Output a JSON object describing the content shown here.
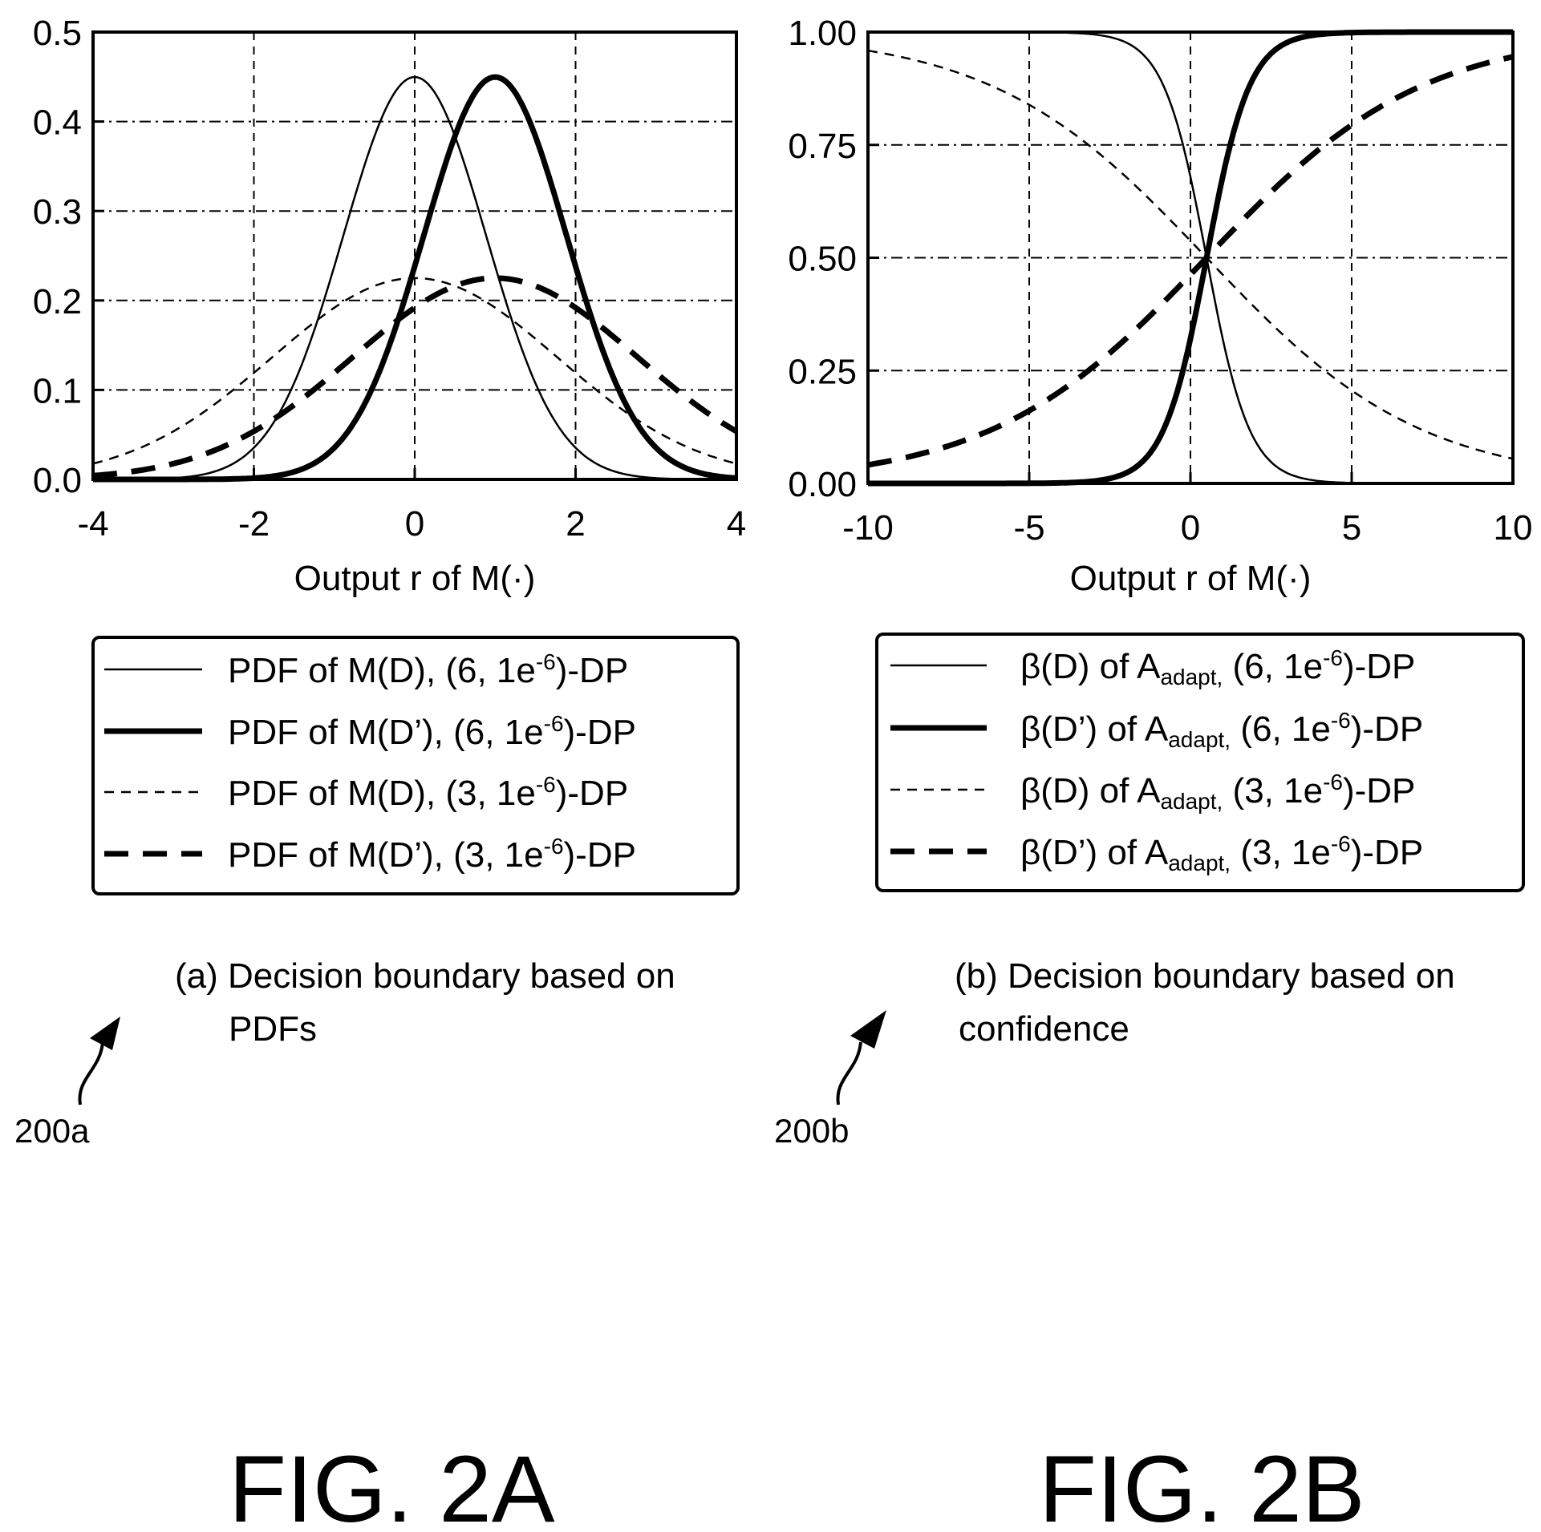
{
  "chart_data": [
    {
      "type": "line",
      "panel": "a",
      "xlabel": "Output r of M(·)",
      "ylabel": "",
      "xlim": [
        -4,
        4
      ],
      "ylim": [
        0,
        0.5
      ],
      "xticks": [
        "-4",
        "-2",
        "0",
        "2",
        "4"
      ],
      "yticks": [
        "0.0",
        "0.1",
        "0.2",
        "0.3",
        "0.4",
        "0.5"
      ],
      "grid": true,
      "legend_position": "below",
      "series": [
        {
          "name": "PDF of M(D), (6, 1e-6)-DP",
          "style": "thin-solid",
          "mean": 0,
          "std": 0.887,
          "x": [
            -4,
            -3,
            -2,
            -1.5,
            -1,
            -0.5,
            0,
            0.5,
            1,
            1.5,
            2,
            3,
            4
          ],
          "y": [
            0.0,
            0.002,
            0.036,
            0.108,
            0.239,
            0.368,
            0.45,
            0.368,
            0.239,
            0.108,
            0.036,
            0.002,
            0.0
          ]
        },
        {
          "name": "PDF of M(D’), (6, 1e-6)-DP",
          "style": "thick-solid",
          "mean": 1,
          "std": 0.887,
          "x": [
            -4,
            -3,
            -2,
            -1,
            -0.5,
            0,
            0.5,
            1,
            1.5,
            2,
            2.5,
            3,
            4
          ],
          "y": [
            0.0,
            0.0,
            0.002,
            0.036,
            0.108,
            0.239,
            0.368,
            0.45,
            0.368,
            0.239,
            0.108,
            0.036,
            0.002
          ]
        },
        {
          "name": "PDF of M(D), (3, 1e-6)-DP",
          "style": "thin-dashed",
          "mean": 0,
          "std": 1.773,
          "x": [
            -4,
            -3,
            -2,
            -1,
            0,
            1,
            2,
            3,
            4
          ],
          "y": [
            0.018,
            0.053,
            0.119,
            0.191,
            0.225,
            0.191,
            0.119,
            0.053,
            0.018
          ]
        },
        {
          "name": "PDF of M(D’), (3, 1e-6)-DP",
          "style": "thick-dashed",
          "mean": 1,
          "std": 1.773,
          "x": [
            -4,
            -3,
            -2,
            -1,
            0,
            1,
            2,
            3,
            4
          ],
          "y": [
            0.004,
            0.018,
            0.053,
            0.119,
            0.191,
            0.225,
            0.191,
            0.119,
            0.053
          ]
        }
      ],
      "legend": {
        "entries": [
          {
            "main": "PDF of M(D), (6, 1e",
            "sup": "-6",
            "tail": ")-DP"
          },
          {
            "main": "PDF of M(D’), (6, 1e",
            "sup": "-6",
            "tail": ")-DP"
          },
          {
            "main": "PDF of M(D), (3, 1e",
            "sup": "-6",
            "tail": ")-DP"
          },
          {
            "main": "PDF of M(D’), (3, 1e",
            "sup": "-6",
            "tail": ")-DP"
          }
        ]
      },
      "caption_line1": "(a) Decision boundary based on",
      "caption_line2": "PDFs",
      "ref": "200a",
      "fig_label": "FIG. 2A"
    },
    {
      "type": "line",
      "panel": "b",
      "xlabel": "Output r of M(·)",
      "ylabel": "",
      "xlim": [
        -10,
        10
      ],
      "ylim": [
        0,
        1
      ],
      "xticks": [
        "-10",
        "-5",
        "0",
        "5",
        "10"
      ],
      "yticks": [
        "0.00",
        "0.25",
        "0.50",
        "0.75",
        "1.00"
      ],
      "grid": true,
      "legend_position": "below",
      "series": [
        {
          "name": "β(D) of A_adapt, (6, 1e-6)-DP",
          "style": "thin-solid",
          "center": 0.5,
          "slope": -1.5,
          "x": [
            -10,
            -4,
            -2,
            -1,
            0,
            0.5,
            1,
            2,
            3,
            5,
            10
          ],
          "y": [
            1.0,
            0.999,
            0.977,
            0.905,
            0.679,
            0.5,
            0.321,
            0.095,
            0.023,
            0.001,
            0.0
          ]
        },
        {
          "name": "β(D’) of A_adapt, (6, 1e-6)-DP",
          "style": "thick-solid",
          "center": 0.5,
          "slope": 1.5,
          "x": [
            -10,
            -4,
            -2,
            -1,
            0,
            0.5,
            1,
            2,
            3,
            5,
            10
          ],
          "y": [
            0.0,
            0.001,
            0.023,
            0.095,
            0.321,
            0.5,
            0.679,
            0.905,
            0.977,
            0.999,
            1.0
          ]
        },
        {
          "name": "β(D) of A_adapt, (3, 1e-6)-DP",
          "style": "thin-dashed",
          "center": 0.5,
          "slope": -0.3,
          "x": [
            -10,
            -5,
            0,
            0.5,
            5,
            10
          ],
          "y": [
            0.959,
            0.839,
            0.537,
            0.5,
            0.206,
            0.055
          ]
        },
        {
          "name": "β(D’) of A_adapt, (3, 1e-6)-DP",
          "style": "thick-dashed",
          "center": 0.5,
          "slope": 0.3,
          "x": [
            -10,
            -5,
            0,
            0.5,
            5,
            10
          ],
          "y": [
            0.041,
            0.161,
            0.463,
            0.5,
            0.794,
            0.945
          ]
        }
      ],
      "legend": {
        "entries": [
          {
            "main": "β(D) of A",
            "sub": "adapt,",
            "mid": " (6, 1e",
            "sup": "-6",
            "tail": ")-DP"
          },
          {
            "main": "β(D’) of A",
            "sub": "adapt,",
            "mid": " (6, 1e",
            "sup": "-6",
            "tail": ")-DP"
          },
          {
            "main": "β(D) of A",
            "sub": "adapt,",
            "mid": " (3, 1e",
            "sup": "-6",
            "tail": ")-DP"
          },
          {
            "main": "β(D’) of A",
            "sub": "adapt,",
            "mid": " (3, 1e",
            "sup": "-6",
            "tail": ")-DP"
          }
        ]
      },
      "caption_line1": "(b) Decision boundary based on",
      "caption_line2": "confidence",
      "ref": "200b",
      "fig_label": "FIG. 2B"
    }
  ]
}
